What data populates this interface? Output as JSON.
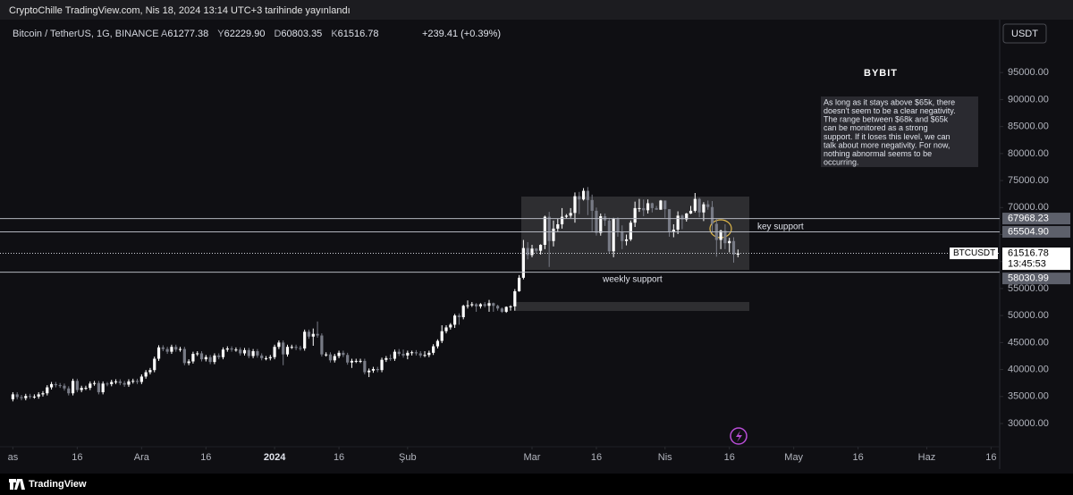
{
  "header": {
    "publisher": "CryptoChille TradingView.com, Nis 18, 2024 13:14 UTC+3 tarihinde yayınlandı"
  },
  "chart_data": {
    "type": "candlestick",
    "title": "Bitcoin / TetherUS, 1G, BINANCE",
    "ohlc_legend": [
      {
        "prefix": "A",
        "text": "61277.38"
      },
      {
        "prefix": "Y",
        "text": "62229.90"
      },
      {
        "prefix": "D",
        "text": "60803.35"
      },
      {
        "prefix": "K",
        "text": "61516.78"
      }
    ],
    "change": "+239.41 (+0.39%)",
    "currency": "USDT",
    "symbol": "BTCUSDT",
    "countdown": "13:45:53",
    "logo": "BYBIT",
    "up_color": "#ffffff",
    "down_color": "#787b86",
    "xlim": [
      "2023-10-29",
      "2024-06-18"
    ],
    "xticks": [
      {
        "value": "2023-11-01",
        "label": "as"
      },
      {
        "value": "2023-11-16",
        "label": "16"
      },
      {
        "value": "2023-12-01",
        "label": "Ara"
      },
      {
        "value": "2023-12-16",
        "label": "16"
      },
      {
        "value": "2024-01-01",
        "label": "2024"
      },
      {
        "value": "2024-01-16",
        "label": "16"
      },
      {
        "value": "2024-02-01",
        "label": "Şub"
      },
      {
        "value": "2024-03-01",
        "label": "Mar"
      },
      {
        "value": "2024-03-16",
        "label": "16"
      },
      {
        "value": "2024-04-01",
        "label": "Nis"
      },
      {
        "value": "2024-04-16",
        "label": "16"
      },
      {
        "value": "2024-05-01",
        "label": "May"
      },
      {
        "value": "2024-05-16",
        "label": "16"
      },
      {
        "value": "2024-06-01",
        "label": "Haz"
      },
      {
        "value": "2024-06-16",
        "label": "16"
      }
    ],
    "ylim": [
      25700,
      104800
    ],
    "yticks": [
      {
        "value": 30000,
        "label": "30000.00"
      },
      {
        "value": 35000,
        "label": "35000.00"
      },
      {
        "value": 40000,
        "label": "40000.00"
      },
      {
        "value": 45000,
        "label": "45000.00"
      },
      {
        "value": 50000,
        "label": "50000.00"
      },
      {
        "value": 55000,
        "label": "55000.00"
      },
      {
        "value": 60000,
        "label": "60000.00"
      },
      {
        "value": 65000,
        "label": "65000.00"
      },
      {
        "value": 70000,
        "label": "70000.00"
      },
      {
        "value": 75000,
        "label": "75000.00"
      },
      {
        "value": 80000,
        "label": "80000.00"
      },
      {
        "value": 85000,
        "label": "85000.00"
      },
      {
        "value": 90000,
        "label": "90000.00"
      },
      {
        "value": 95000,
        "label": "95000.00"
      }
    ],
    "levels": [
      67968.23,
      {
        "value": 65504.9,
        "label": "65504.90"
      },
      58030.99
    ],
    "key_support": "key support",
    "weekly_support": "weekly support",
    "note": [
      "As long as it stays above $65k, there",
      "doesn't seem to be a clear negativity.",
      "The range between $68k and $65k",
      "can be monitored as a strong",
      "support. If it loses this level, we can",
      "talk about more negativity. For now,",
      "nothing abnormal seems to be",
      "occurring."
    ],
    "x": [
      "2023-11-01",
      "2023-11-02",
      "2023-11-03",
      "2023-11-04",
      "2023-11-05",
      "2023-11-06",
      "2023-11-07",
      "2023-11-08",
      "2023-11-09",
      "2023-11-10",
      "2023-11-11",
      "2023-11-12",
      "2023-11-13",
      "2023-11-14",
      "2023-11-15",
      "2023-11-16",
      "2023-11-17",
      "2023-11-18",
      "2023-11-19",
      "2023-11-20",
      "2023-11-21",
      "2023-11-22",
      "2023-11-23",
      "2023-11-24",
      "2023-11-25",
      "2023-11-26",
      "2023-11-27",
      "2023-11-28",
      "2023-11-29",
      "2023-11-30",
      "2023-12-01",
      "2023-12-02",
      "2023-12-03",
      "2023-12-04",
      "2023-12-05",
      "2023-12-06",
      "2023-12-07",
      "2023-12-08",
      "2023-12-09",
      "2023-12-10",
      "2023-12-11",
      "2023-12-12",
      "2023-12-13",
      "2023-12-14",
      "2023-12-15",
      "2023-12-16",
      "2023-12-17",
      "2023-12-18",
      "2023-12-19",
      "2023-12-20",
      "2023-12-21",
      "2023-12-22",
      "2023-12-23",
      "2023-12-24",
      "2023-12-25",
      "2023-12-26",
      "2023-12-27",
      "2023-12-28",
      "2023-12-29",
      "2023-12-30",
      "2023-12-31",
      "2024-01-01",
      "2024-01-02",
      "2024-01-03",
      "2024-01-04",
      "2024-01-05",
      "2024-01-06",
      "2024-01-07",
      "2024-01-08",
      "2024-01-09",
      "2024-01-10",
      "2024-01-11",
      "2024-01-12",
      "2024-01-13",
      "2024-01-14",
      "2024-01-15",
      "2024-01-16",
      "2024-01-17",
      "2024-01-18",
      "2024-01-19",
      "2024-01-20",
      "2024-01-21",
      "2024-01-22",
      "2024-01-23",
      "2024-01-24",
      "2024-01-25",
      "2024-01-26",
      "2024-01-27",
      "2024-01-28",
      "2024-01-29",
      "2024-01-30",
      "2024-01-31",
      "2024-02-01",
      "2024-02-02",
      "2024-02-03",
      "2024-02-04",
      "2024-02-05",
      "2024-02-06",
      "2024-02-07",
      "2024-02-08",
      "2024-02-09",
      "2024-02-10",
      "2024-02-11",
      "2024-02-12",
      "2024-02-13",
      "2024-02-14",
      "2024-02-15",
      "2024-02-16",
      "2024-02-17",
      "2024-02-18",
      "2024-02-19",
      "2024-02-20",
      "2024-02-21",
      "2024-02-22",
      "2024-02-23",
      "2024-02-24",
      "2024-02-25",
      "2024-02-26",
      "2024-02-27",
      "2024-02-28",
      "2024-02-29",
      "2024-03-01",
      "2024-03-02",
      "2024-03-03",
      "2024-03-04",
      "2024-03-05",
      "2024-03-06",
      "2024-03-07",
      "2024-03-08",
      "2024-03-09",
      "2024-03-10",
      "2024-03-11",
      "2024-03-12",
      "2024-03-13",
      "2024-03-14",
      "2024-03-15",
      "2024-03-16",
      "2024-03-17",
      "2024-03-18",
      "2024-03-19",
      "2024-03-20",
      "2024-03-21",
      "2024-03-22",
      "2024-03-23",
      "2024-03-24",
      "2024-03-25",
      "2024-03-26",
      "2024-03-27",
      "2024-03-28",
      "2024-03-29",
      "2024-03-30",
      "2024-03-31",
      "2024-04-01",
      "2024-04-02",
      "2024-04-03",
      "2024-04-04",
      "2024-04-05",
      "2024-04-06",
      "2024-04-07",
      "2024-04-08",
      "2024-04-09",
      "2024-04-10",
      "2024-04-11",
      "2024-04-12",
      "2024-04-13",
      "2024-04-14",
      "2024-04-15",
      "2024-04-16",
      "2024-04-17",
      "2024-04-18"
    ],
    "ohlc": [
      [
        34500,
        35800,
        34100,
        35400
      ],
      [
        35400,
        35800,
        34500,
        34900
      ],
      [
        34900,
        35300,
        34300,
        34700
      ],
      [
        34700,
        35500,
        34300,
        35100
      ],
      [
        35100,
        35500,
        34600,
        35000
      ],
      [
        35000,
        35400,
        34600,
        35000
      ],
      [
        35000,
        35800,
        34600,
        35400
      ],
      [
        35400,
        36000,
        35000,
        35600
      ],
      [
        35600,
        37100,
        35200,
        36700
      ],
      [
        36700,
        37700,
        36300,
        37300
      ],
      [
        37300,
        37700,
        36700,
        37100
      ],
      [
        37100,
        37500,
        36600,
        37000
      ],
      [
        37000,
        37400,
        36100,
        36500
      ],
      [
        36500,
        36900,
        35200,
        35600
      ],
      [
        35600,
        38300,
        35200,
        37900
      ],
      [
        37900,
        38300,
        35800,
        36200
      ],
      [
        36200,
        37000,
        35800,
        36600
      ],
      [
        36600,
        37000,
        36200,
        36600
      ],
      [
        36600,
        37800,
        36200,
        37400
      ],
      [
        37400,
        37900,
        37000,
        37500
      ],
      [
        37500,
        37900,
        35400,
        35800
      ],
      [
        35800,
        37800,
        35400,
        37400
      ],
      [
        37400,
        37700,
        36900,
        37300
      ],
      [
        37300,
        38100,
        36900,
        37700
      ],
      [
        37700,
        38200,
        37300,
        37800
      ],
      [
        37800,
        38200,
        37100,
        37500
      ],
      [
        37500,
        37900,
        36800,
        37200
      ],
      [
        37200,
        38200,
        36800,
        37800
      ],
      [
        37800,
        38300,
        37400,
        37900
      ],
      [
        37900,
        38300,
        37300,
        37700
      ],
      [
        37700,
        39100,
        37300,
        38700
      ],
      [
        38700,
        39900,
        38300,
        39500
      ],
      [
        39500,
        40300,
        39100,
        39900
      ],
      [
        39900,
        42400,
        39500,
        42000
      ],
      [
        42000,
        44500,
        41600,
        44100
      ],
      [
        44100,
        44500,
        43400,
        43800
      ],
      [
        43800,
        44200,
        42900,
        43300
      ],
      [
        43300,
        44600,
        42900,
        44200
      ],
      [
        44200,
        44600,
        43300,
        43700
      ],
      [
        43700,
        44200,
        43300,
        43800
      ],
      [
        43800,
        44200,
        40800,
        41200
      ],
      [
        41200,
        41900,
        40800,
        41500
      ],
      [
        41500,
        43300,
        41100,
        42900
      ],
      [
        42900,
        43400,
        42500,
        43000
      ],
      [
        43000,
        43400,
        41500,
        41900
      ],
      [
        41900,
        42700,
        41500,
        42300
      ],
      [
        42300,
        42700,
        41000,
        41400
      ],
      [
        41400,
        43000,
        41000,
        42600
      ],
      [
        42600,
        43000,
        41900,
        42300
      ],
      [
        42300,
        44100,
        41900,
        43700
      ],
      [
        43700,
        44300,
        43300,
        43900
      ],
      [
        43900,
        44300,
        43300,
        43700
      ],
      [
        43700,
        44100,
        43300,
        43700
      ],
      [
        43700,
        44100,
        42600,
        43000
      ],
      [
        43000,
        44000,
        42600,
        43600
      ],
      [
        43600,
        44000,
        42100,
        42500
      ],
      [
        42500,
        43800,
        42100,
        43400
      ],
      [
        43400,
        43800,
        42200,
        42600
      ],
      [
        42600,
        43000,
        41700,
        42100
      ],
      [
        42100,
        42500,
        41700,
        42100
      ],
      [
        42100,
        42700,
        41700,
        42300
      ],
      [
        42300,
        44600,
        41900,
        44200
      ],
      [
        44200,
        45400,
        43800,
        45000
      ],
      [
        45000,
        45400,
        40800,
        42800
      ],
      [
        42800,
        44600,
        42400,
        44200
      ],
      [
        44200,
        44600,
        43800,
        44200
      ],
      [
        44200,
        44600,
        43600,
        44000
      ],
      [
        44000,
        44400,
        43500,
        43900
      ],
      [
        43900,
        47400,
        43500,
        47000
      ],
      [
        47000,
        47400,
        45700,
        46100
      ],
      [
        46100,
        47600,
        44400,
        46600
      ],
      [
        46600,
        48900,
        45900,
        46300
      ],
      [
        46300,
        46700,
        42400,
        42800
      ],
      [
        42800,
        43200,
        42400,
        42800
      ],
      [
        42800,
        43200,
        41300,
        41700
      ],
      [
        41700,
        42900,
        41300,
        42500
      ],
      [
        42500,
        43500,
        42100,
        43100
      ],
      [
        43100,
        43500,
        42300,
        42700
      ],
      [
        42700,
        43100,
        40900,
        41300
      ],
      [
        41300,
        42000,
        40300,
        41600
      ],
      [
        41600,
        42000,
        41200,
        41600
      ],
      [
        41600,
        42000,
        41200,
        41600
      ],
      [
        41600,
        42000,
        39100,
        39500
      ],
      [
        39500,
        40200,
        38600,
        39800
      ],
      [
        39800,
        40500,
        39400,
        40100
      ],
      [
        40100,
        40500,
        39500,
        39900
      ],
      [
        39900,
        42200,
        39500,
        41800
      ],
      [
        41800,
        42500,
        41400,
        42100
      ],
      [
        42100,
        42800,
        41600,
        42000
      ],
      [
        42000,
        43700,
        41600,
        43300
      ],
      [
        43300,
        43800,
        42500,
        42900
      ],
      [
        42900,
        43700,
        42200,
        42600
      ],
      [
        42600,
        43500,
        41900,
        43100
      ],
      [
        43100,
        43500,
        42600,
        43200
      ],
      [
        43200,
        43600,
        42600,
        43000
      ],
      [
        43000,
        43400,
        42200,
        42600
      ],
      [
        42600,
        43400,
        42300,
        42700
      ],
      [
        42700,
        43500,
        42300,
        43100
      ],
      [
        43100,
        44700,
        42700,
        44300
      ],
      [
        44300,
        45600,
        43900,
        45300
      ],
      [
        45300,
        48200,
        44900,
        47100
      ],
      [
        47100,
        48200,
        46700,
        47800
      ],
      [
        47800,
        48600,
        47400,
        48300
      ],
      [
        48300,
        50300,
        47700,
        50000
      ],
      [
        50000,
        50400,
        48300,
        49700
      ],
      [
        49700,
        52000,
        49300,
        51800
      ],
      [
        51800,
        52800,
        51300,
        51900
      ],
      [
        51900,
        52500,
        51600,
        52100
      ],
      [
        52100,
        52300,
        50700,
        51700
      ],
      [
        51700,
        52300,
        51300,
        52100
      ],
      [
        52100,
        52500,
        51500,
        51800
      ],
      [
        51800,
        52900,
        50700,
        52300
      ],
      [
        52300,
        52400,
        50700,
        51800
      ],
      [
        51800,
        52000,
        50900,
        51300
      ],
      [
        51300,
        51500,
        50500,
        50700
      ],
      [
        50700,
        51700,
        50500,
        51600
      ],
      [
        51600,
        51900,
        50900,
        51700
      ],
      [
        51700,
        54900,
        50900,
        54500
      ],
      [
        54500,
        57500,
        54400,
        57000
      ],
      [
        57000,
        64000,
        56700,
        62500
      ],
      [
        62500,
        63600,
        60400,
        61200
      ],
      [
        61200,
        63100,
        60800,
        62400
      ],
      [
        62400,
        62500,
        61600,
        62000
      ],
      [
        62000,
        63200,
        61300,
        63100
      ],
      [
        63100,
        68500,
        62300,
        68300
      ],
      [
        68300,
        69200,
        59000,
        63800
      ],
      [
        63800,
        67600,
        62800,
        66100
      ],
      [
        66100,
        67900,
        65600,
        66900
      ],
      [
        66900,
        69900,
        66100,
        68300
      ],
      [
        68300,
        68800,
        68000,
        68500
      ],
      [
        68500,
        69900,
        68100,
        69000
      ],
      [
        69000,
        72800,
        67200,
        72100
      ],
      [
        72100,
        72900,
        68800,
        71500
      ],
      [
        71500,
        73600,
        71300,
        73100
      ],
      [
        73100,
        73800,
        68600,
        71400
      ],
      [
        71400,
        72400,
        65600,
        69400
      ],
      [
        69400,
        70000,
        64800,
        65300
      ],
      [
        65300,
        68900,
        64800,
        68400
      ],
      [
        68400,
        68900,
        66600,
        67600
      ],
      [
        67600,
        68100,
        61500,
        61900
      ],
      [
        61900,
        68100,
        60800,
        67900
      ],
      [
        67900,
        68200,
        64600,
        65500
      ],
      [
        65500,
        66700,
        62300,
        63800
      ],
      [
        63800,
        65000,
        63000,
        64100
      ],
      [
        64100,
        67600,
        63800,
        67200
      ],
      [
        67200,
        71100,
        66400,
        69900
      ],
      [
        69900,
        71600,
        69200,
        69900
      ],
      [
        69900,
        71500,
        68400,
        69500
      ],
      [
        69500,
        71500,
        68900,
        70800
      ],
      [
        70800,
        70900,
        69100,
        69900
      ],
      [
        69900,
        70300,
        69600,
        69600
      ],
      [
        69600,
        71400,
        69600,
        71300
      ],
      [
        71300,
        71300,
        68100,
        69700
      ],
      [
        69700,
        69700,
        64600,
        65500
      ],
      [
        65500,
        66900,
        64500,
        65900
      ],
      [
        65900,
        69300,
        65100,
        68500
      ],
      [
        68500,
        68700,
        66000,
        67800
      ],
      [
        67800,
        69000,
        67400,
        68900
      ],
      [
        68900,
        70300,
        68800,
        69400
      ],
      [
        69400,
        72700,
        69100,
        71600
      ],
      [
        71600,
        71800,
        68200,
        69100
      ],
      [
        69100,
        71000,
        67500,
        70600
      ],
      [
        70600,
        71300,
        69600,
        70100
      ],
      [
        70100,
        71200,
        65300,
        67000
      ],
      [
        67000,
        67900,
        60900,
        64000
      ],
      [
        64000,
        65900,
        62300,
        65700
      ],
      [
        65700,
        66900,
        62300,
        63400
      ],
      [
        63400,
        64400,
        61700,
        63800
      ],
      [
        63800,
        64500,
        59800,
        61300
      ],
      [
        61277.38,
        62229.9,
        60803.35,
        61516.78
      ]
    ]
  },
  "footer": {
    "brand": "TradingView"
  }
}
